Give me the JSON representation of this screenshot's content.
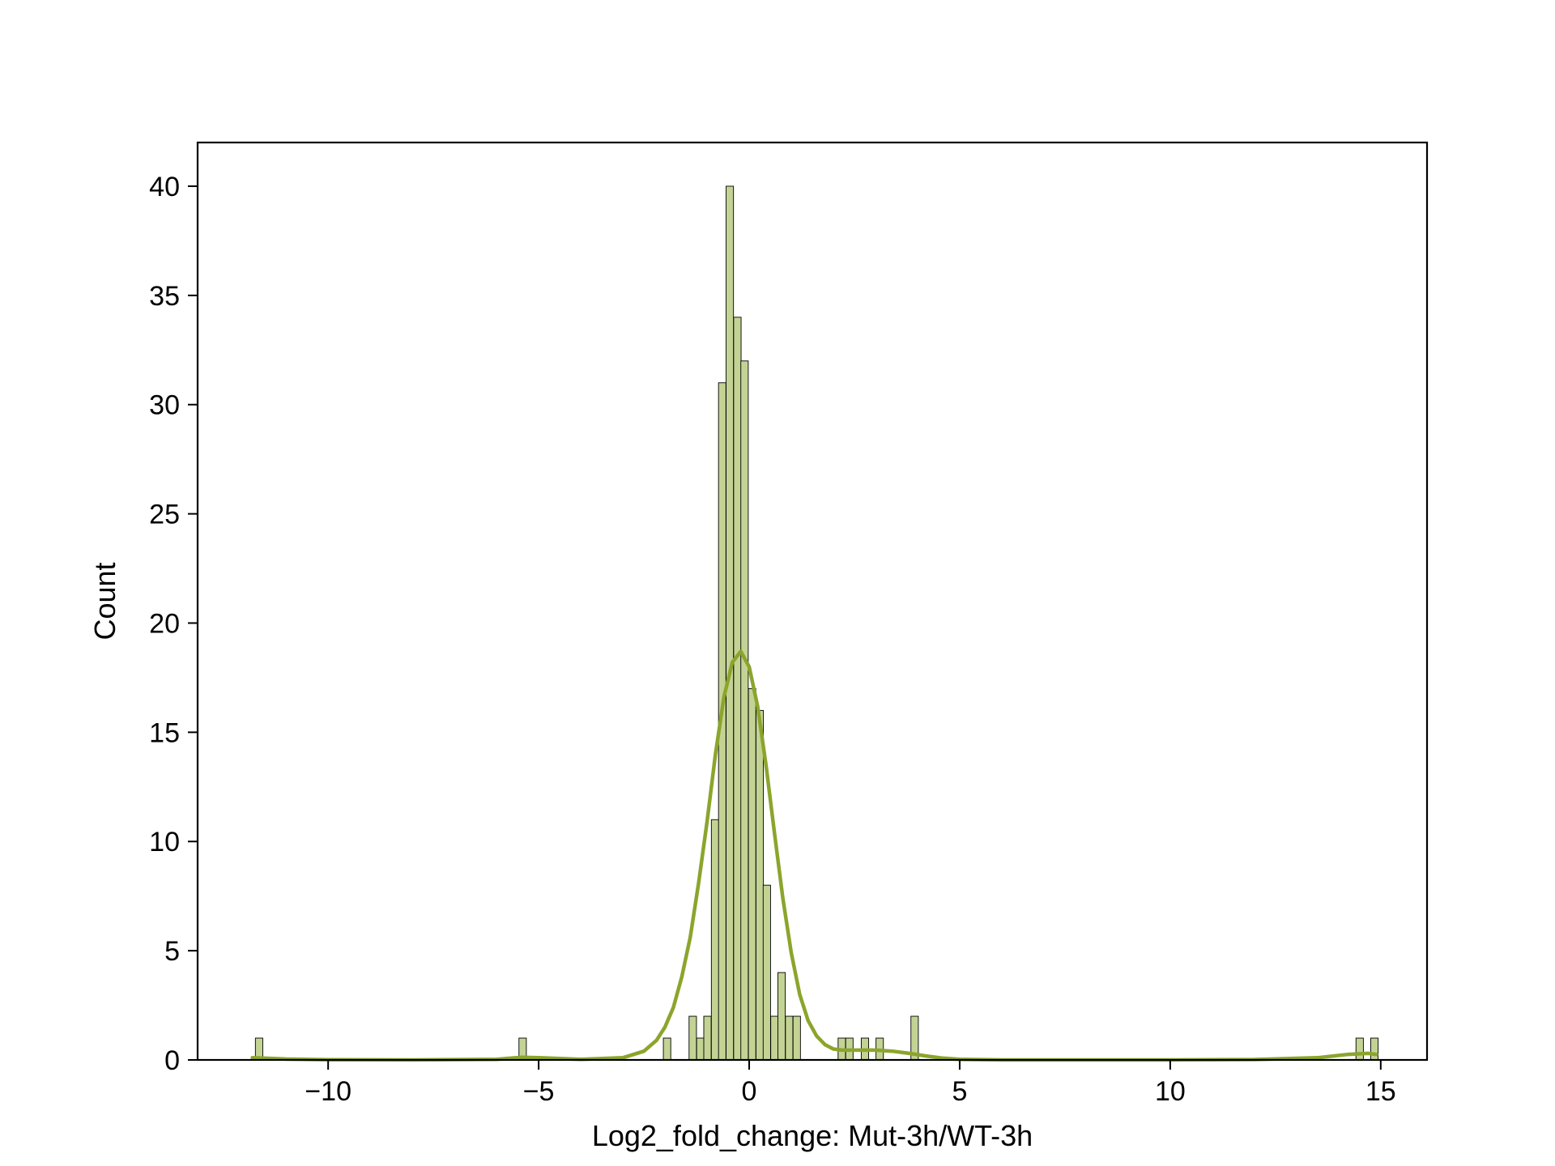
{
  "chart_data": {
    "type": "histogram",
    "title": "",
    "xlabel": "Log2_fold_change: Mut-3h/WT-3h",
    "ylabel": "Count",
    "xlim": [
      -13.1,
      16.1
    ],
    "ylim": [
      0,
      42
    ],
    "xticks": [
      -10,
      -5,
      0,
      5,
      10,
      15
    ],
    "xtick_labels": [
      "−10",
      "−5",
      "0",
      "5",
      "10",
      "15"
    ],
    "yticks": [
      0,
      5,
      10,
      15,
      20,
      25,
      30,
      35,
      40
    ],
    "ytick_labels": [
      "0",
      "5",
      "10",
      "15",
      "20",
      "25",
      "30",
      "35",
      "40"
    ],
    "bin_width": 0.176,
    "grid": false,
    "colors": {
      "bar_fill": "#c3d394",
      "bar_edge": "#000000",
      "kde_line": "#8ba52c",
      "frame": "#000000"
    },
    "bins": [
      {
        "x": -11.64,
        "count": 1
      },
      {
        "x": -5.38,
        "count": 1
      },
      {
        "x": -1.95,
        "count": 1
      },
      {
        "x": -1.34,
        "count": 2
      },
      {
        "x": -1.16,
        "count": 1
      },
      {
        "x": -0.99,
        "count": 2
      },
      {
        "x": -0.81,
        "count": 11
      },
      {
        "x": -0.64,
        "count": 31
      },
      {
        "x": -0.46,
        "count": 40
      },
      {
        "x": -0.28,
        "count": 34
      },
      {
        "x": -0.11,
        "count": 32
      },
      {
        "x": 0.07,
        "count": 17
      },
      {
        "x": 0.25,
        "count": 16
      },
      {
        "x": 0.42,
        "count": 8
      },
      {
        "x": 0.6,
        "count": 2
      },
      {
        "x": 0.77,
        "count": 4
      },
      {
        "x": 0.95,
        "count": 2
      },
      {
        "x": 1.13,
        "count": 2
      },
      {
        "x": 2.2,
        "count": 1
      },
      {
        "x": 2.38,
        "count": 1
      },
      {
        "x": 2.75,
        "count": 1
      },
      {
        "x": 3.1,
        "count": 1
      },
      {
        "x": 3.93,
        "count": 2
      },
      {
        "x": 14.5,
        "count": 1
      },
      {
        "x": 14.85,
        "count": 1
      }
    ],
    "kde": {
      "x": [
        -11.8,
        -11.0,
        -10.0,
        -8.0,
        -6.0,
        -5.4,
        -5.0,
        -4.0,
        -3.0,
        -2.5,
        -2.2,
        -2.0,
        -1.8,
        -1.6,
        -1.4,
        -1.2,
        -1.0,
        -0.8,
        -0.6,
        -0.4,
        -0.2,
        0.0,
        0.2,
        0.4,
        0.6,
        0.8,
        1.0,
        1.2,
        1.4,
        1.6,
        1.8,
        2.0,
        2.2,
        2.6,
        3.0,
        3.4,
        3.8,
        4.2,
        4.6,
        5.0,
        6.0,
        8.0,
        10.0,
        12.0,
        13.5,
        14.2,
        14.7,
        14.9
      ],
      "y": [
        0.1,
        0.04,
        0.01,
        0.0,
        0.03,
        0.12,
        0.1,
        0.03,
        0.1,
        0.4,
        0.9,
        1.5,
        2.4,
        3.8,
        5.6,
        8.1,
        10.9,
        14.0,
        16.6,
        18.2,
        18.7,
        18.0,
        16.2,
        13.5,
        10.4,
        7.4,
        4.9,
        3.0,
        1.8,
        1.1,
        0.7,
        0.5,
        0.45,
        0.45,
        0.45,
        0.4,
        0.3,
        0.18,
        0.08,
        0.03,
        0.0,
        0.0,
        0.0,
        0.02,
        0.1,
        0.25,
        0.3,
        0.25
      ]
    }
  }
}
